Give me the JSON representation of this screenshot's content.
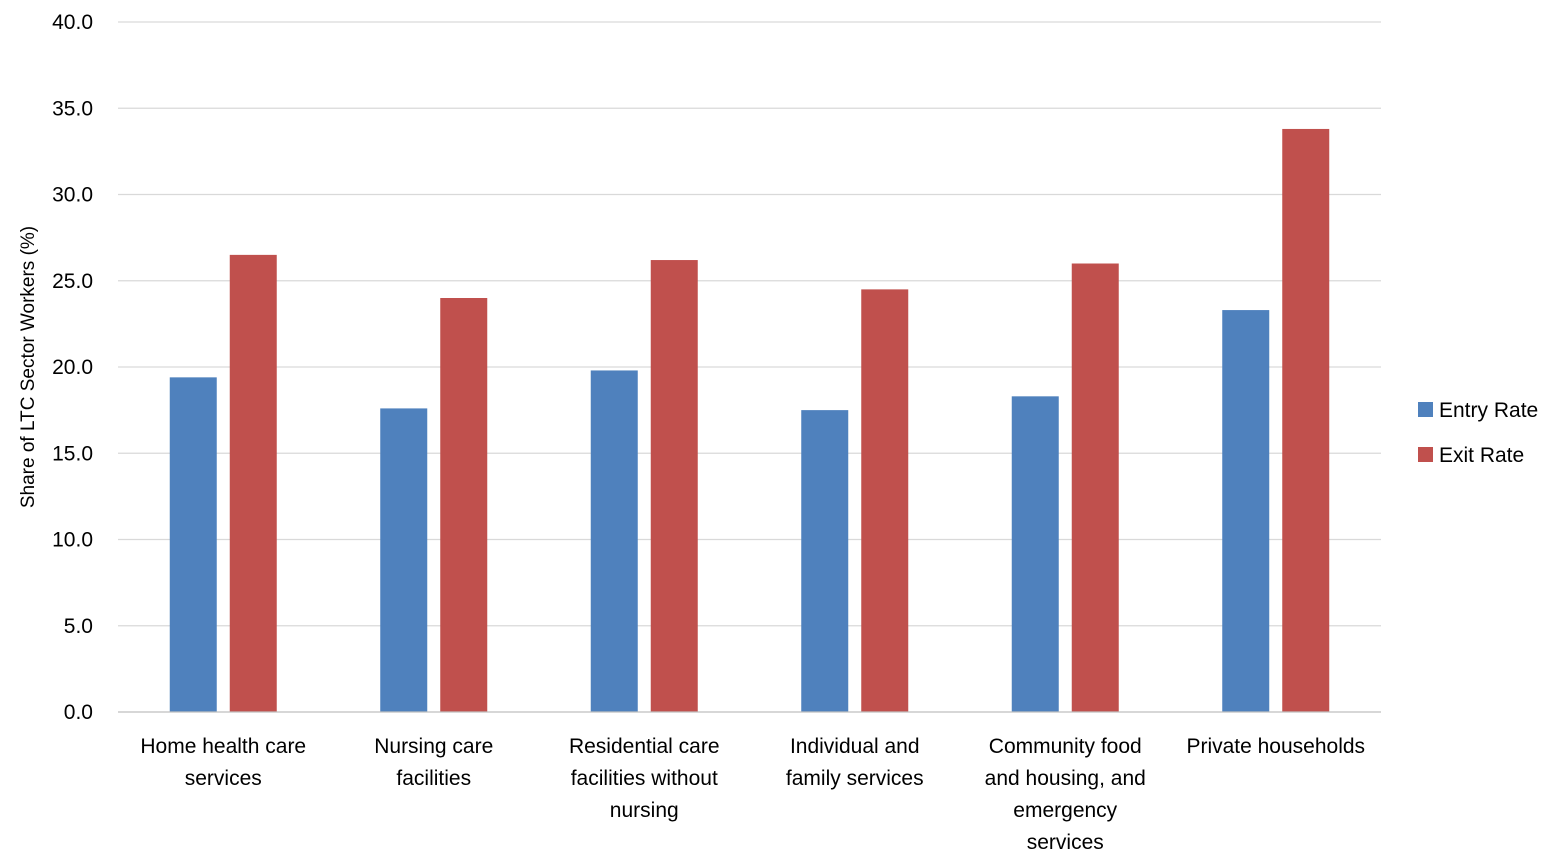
{
  "chart_data": {
    "type": "bar",
    "title": "",
    "xlabel": "",
    "ylabel": "Share of LTC Sector Workers (%)",
    "ylim": [
      0,
      40
    ],
    "ytick_step": 5,
    "ytick_labels": [
      "0.0",
      "5.0",
      "10.0",
      "15.0",
      "20.0",
      "25.0",
      "30.0",
      "35.0",
      "40.0"
    ],
    "grid": true,
    "legend_position": "right",
    "categories": [
      [
        "Home health care",
        "services"
      ],
      [
        "Nursing care",
        "facilities"
      ],
      [
        "Residential care",
        "facilities without",
        "nursing"
      ],
      [
        "Individual and",
        "family services"
      ],
      [
        "Community food",
        "and housing, and",
        "emergency",
        "services"
      ],
      [
        "Private households"
      ]
    ],
    "series": [
      {
        "name": "Entry Rate",
        "color": "#4F81BD",
        "values": [
          19.4,
          17.6,
          19.8,
          17.5,
          18.3,
          23.3
        ]
      },
      {
        "name": "Exit Rate",
        "color": "#C0504D",
        "values": [
          26.5,
          24.0,
          26.2,
          24.5,
          26.0,
          33.8
        ]
      }
    ]
  }
}
